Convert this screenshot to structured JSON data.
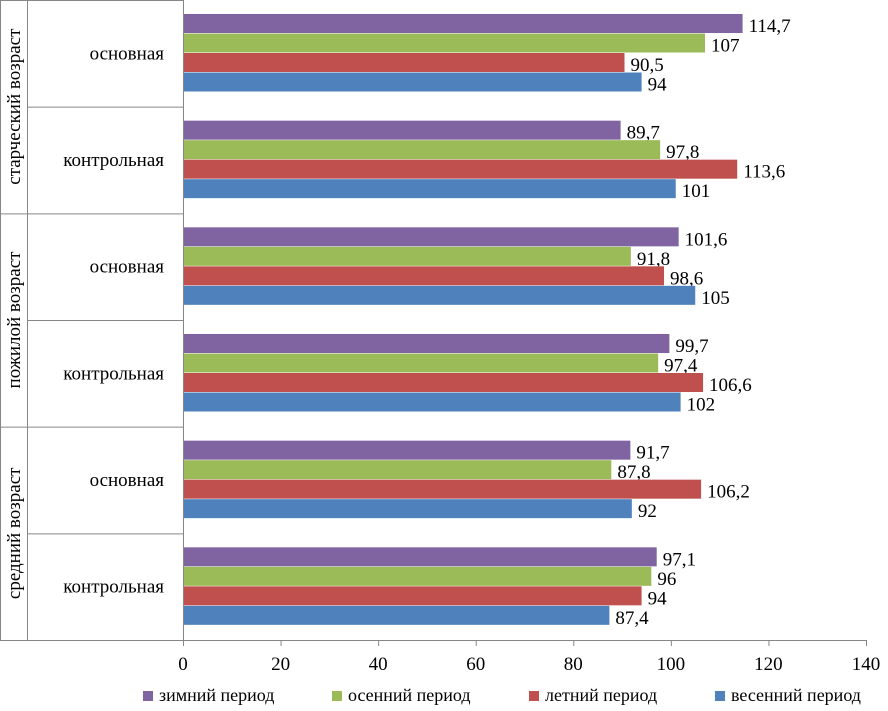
{
  "chart_data": {
    "type": "bar",
    "orientation": "horizontal",
    "xlim": [
      0,
      140
    ],
    "x_ticks": [
      0,
      20,
      40,
      60,
      80,
      100,
      120,
      140
    ],
    "grid": false,
    "legend_position": "bottom",
    "groups": [
      {
        "name": "старческий возраст",
        "subgroups": [
          {
            "name": "основная",
            "values": {
              "zimniy": 114.7,
              "osenniy": 107,
              "letniy": 90.5,
              "vesenniy": 94
            },
            "labels": {
              "zimniy": "114,7",
              "osenniy": "107",
              "letniy": "90,5",
              "vesenniy": "94"
            }
          },
          {
            "name": "контрольная",
            "values": {
              "zimniy": 89.7,
              "osenniy": 97.8,
              "letniy": 113.6,
              "vesenniy": 101
            },
            "labels": {
              "zimniy": "89,7",
              "osenniy": "97,8",
              "letniy": "113,6",
              "vesenniy": "101"
            }
          }
        ]
      },
      {
        "name": "пожилой возраст",
        "subgroups": [
          {
            "name": "основная",
            "values": {
              "zimniy": 101.6,
              "osenniy": 91.8,
              "letniy": 98.6,
              "vesenniy": 105
            },
            "labels": {
              "zimniy": "101,6",
              "osenniy": "91,8",
              "letniy": "98,6",
              "vesenniy": "105"
            }
          },
          {
            "name": "контрольная",
            "values": {
              "zimniy": 99.7,
              "osenniy": 97.4,
              "letniy": 106.6,
              "vesenniy": 102
            },
            "labels": {
              "zimniy": "99,7",
              "osenniy": "97,4",
              "letniy": "106,6",
              "vesenniy": "102"
            }
          }
        ]
      },
      {
        "name": "средний возраст",
        "subgroups": [
          {
            "name": "основная",
            "values": {
              "zimniy": 91.7,
              "osenniy": 87.8,
              "letniy": 106.2,
              "vesenniy": 92
            },
            "labels": {
              "zimniy": "91,7",
              "osenniy": "87,8",
              "letniy": "106,2",
              "vesenniy": "92"
            }
          },
          {
            "name": "контрольная",
            "values": {
              "zimniy": 97.1,
              "osenniy": 96,
              "letniy": 94,
              "vesenniy": 87.4
            },
            "labels": {
              "zimniy": "97,1",
              "osenniy": "96",
              "letniy": "94",
              "vesenniy": "87,4"
            }
          }
        ]
      }
    ],
    "series": [
      {
        "key": "zimniy",
        "name": "зимний период",
        "color": "#8064A2"
      },
      {
        "key": "osenniy",
        "name": "осенний период",
        "color": "#9BBB59"
      },
      {
        "key": "letniy",
        "name": "летний период",
        "color": "#C0504D"
      },
      {
        "key": "vesenniy",
        "name": "весенний период",
        "color": "#4F81BD"
      }
    ]
  }
}
